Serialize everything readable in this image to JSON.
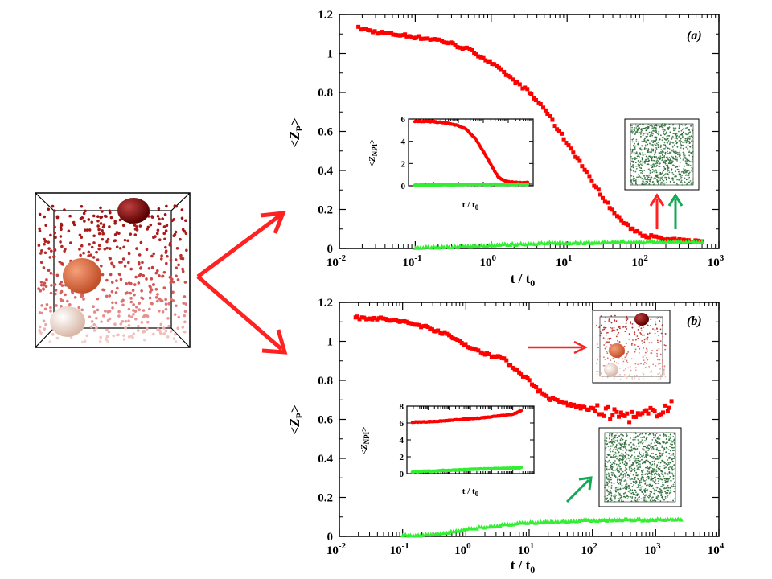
{
  "chart_data": [
    {
      "panel": "(a)",
      "type": "scatter",
      "x_scale": "log",
      "xlim": [
        0.01,
        1000
      ],
      "ylim": [
        0,
        1.2
      ],
      "xlabel": {
        "base": "t / t",
        "sub": "0"
      },
      "ylabel": {
        "base": "<Z",
        "sub": "P",
        "tail": ">"
      },
      "x_ticks": [
        {
          "base": "10",
          "exp": "-2"
        },
        {
          "base": "10",
          "exp": "-1"
        },
        {
          "base": "10",
          "exp": "0"
        },
        {
          "base": "10",
          "exp": "1"
        },
        {
          "base": "10",
          "exp": "2"
        },
        {
          "base": "10",
          "exp": "3"
        }
      ],
      "y_ticks": [
        "0",
        "0.2",
        "0.4",
        "0.6",
        "0.8",
        "1",
        "1.2"
      ],
      "series": [
        {
          "name": "red",
          "color": "#ff0000",
          "marker": "square",
          "x": [
            0.018,
            0.03,
            0.05,
            0.08,
            0.12,
            0.2,
            0.3,
            0.5,
            0.7,
            1.0,
            1.5,
            2.0,
            3.0,
            3.5,
            5,
            7,
            10,
            15,
            20,
            30,
            40,
            60,
            100,
            150,
            200,
            300,
            400,
            600
          ],
          "y": [
            1.13,
            1.11,
            1.1,
            1.09,
            1.08,
            1.07,
            1.05,
            1.02,
            0.99,
            0.95,
            0.9,
            0.86,
            0.81,
            0.78,
            0.72,
            0.63,
            0.54,
            0.44,
            0.36,
            0.26,
            0.19,
            0.12,
            0.07,
            0.055,
            0.045,
            0.04,
            0.038,
            0.036
          ]
        },
        {
          "name": "green",
          "color": "#33ee33",
          "marker": "triangle",
          "x": [
            0.1,
            0.2,
            0.5,
            1,
            2,
            3,
            5,
            10,
            20,
            50,
            100,
            200,
            400,
            600
          ],
          "y": [
            0.005,
            0.008,
            0.012,
            0.018,
            0.022,
            0.025,
            0.027,
            0.029,
            0.031,
            0.033,
            0.034,
            0.035,
            0.036,
            0.036
          ]
        }
      ],
      "inset": {
        "type": "scatter",
        "x_scale": "log",
        "ylim": [
          0,
          6
        ],
        "xlabel": {
          "base": "t / t",
          "sub": "0"
        },
        "ylabel": {
          "base": "<Z",
          "sub": "NPI",
          "tail": ">"
        },
        "y_ticks": [
          "0",
          "2",
          "4",
          "6"
        ],
        "series": [
          {
            "name": "red",
            "color": "#ff0000",
            "x": [
              0.018,
              0.05,
              0.1,
              0.3,
              1,
              2,
              5,
              10,
              20,
              40,
              70,
              100,
              200,
              400,
              600
            ],
            "y": [
              5.8,
              5.78,
              5.75,
              5.65,
              5.4,
              5.1,
              4.2,
              3.1,
              1.9,
              0.8,
              0.45,
              0.35,
              0.3,
              0.28,
              0.28
            ]
          },
          {
            "name": "green",
            "color": "#33ee33",
            "x": [
              0.018,
              0.1,
              1,
              10,
              100,
              600
            ],
            "y": [
              0.05,
              0.08,
              0.1,
              0.12,
              0.13,
              0.14
            ]
          }
        ]
      }
    },
    {
      "panel": "(b)",
      "type": "scatter",
      "x_scale": "log",
      "xlim": [
        0.01,
        10000
      ],
      "ylim": [
        0,
        1.2
      ],
      "xlabel": {
        "base": "t / t",
        "sub": "0"
      },
      "ylabel": {
        "base": "<Z",
        "sub": "P",
        "tail": ">"
      },
      "x_ticks": [
        {
          "base": "10",
          "exp": "-2"
        },
        {
          "base": "10",
          "exp": "-1"
        },
        {
          "base": "10",
          "exp": "0"
        },
        {
          "base": "10",
          "exp": "1"
        },
        {
          "base": "10",
          "exp": "2"
        },
        {
          "base": "10",
          "exp": "3"
        },
        {
          "base": "10",
          "exp": "4"
        }
      ],
      "y_ticks": [
        "0",
        "0.2",
        "0.4",
        "0.6",
        "0.8",
        "1",
        "1.2"
      ],
      "series": [
        {
          "name": "red",
          "color": "#ff0000",
          "marker": "square",
          "x": [
            0.018,
            0.035,
            0.06,
            0.1,
            0.2,
            0.4,
            0.8,
            1.5,
            2.5,
            3.5,
            6,
            10,
            15,
            20,
            30,
            50,
            100,
            200,
            300,
            500,
            800,
            1200,
            1800
          ],
          "y": [
            1.12,
            1.12,
            1.11,
            1.1,
            1.08,
            1.05,
            1.0,
            0.95,
            0.93,
            0.92,
            0.86,
            0.8,
            0.74,
            0.71,
            0.69,
            0.67,
            0.65,
            0.63,
            0.62,
            0.61,
            0.63,
            0.65,
            0.67
          ]
        },
        {
          "name": "green",
          "color": "#33ee33",
          "marker": "triangle",
          "x": [
            0.1,
            0.3,
            0.8,
            1.5,
            3,
            6,
            10,
            20,
            50,
            100,
            300,
            1000,
            2500
          ],
          "y": [
            0.005,
            0.01,
            0.03,
            0.045,
            0.055,
            0.065,
            0.07,
            0.075,
            0.08,
            0.083,
            0.085,
            0.086,
            0.087
          ]
        }
      ],
      "inset": {
        "type": "scatter",
        "x_scale": "log",
        "ylim": [
          0,
          8
        ],
        "xlabel": {
          "base": "t / t",
          "sub": "0"
        },
        "ylabel": {
          "base": "<Z",
          "sub": "NPI",
          "tail": ">"
        },
        "y_ticks": [
          "0",
          "2",
          "4",
          "6",
          "8"
        ],
        "series": [
          {
            "name": "red",
            "color": "#ff0000",
            "x": [
              0.018,
              0.05,
              0.1,
              0.3,
              1,
              3,
              10,
              30,
              100,
              300,
              800,
              1500,
              2500
            ],
            "y": [
              6.1,
              6.12,
              6.15,
              6.2,
              6.3,
              6.4,
              6.5,
              6.6,
              6.75,
              6.9,
              7.0,
              7.2,
              7.5
            ]
          },
          {
            "name": "green",
            "color": "#33ee33",
            "x": [
              0.018,
              0.1,
              1,
              10,
              100,
              1000,
              2500
            ],
            "y": [
              0.2,
              0.3,
              0.4,
              0.5,
              0.6,
              0.65,
              0.7
            ]
          }
        ]
      }
    }
  ],
  "colors": {
    "red_arrow": "#ff2222",
    "green_arrow": "#11aa55",
    "green_cloud": "#2e6b3a",
    "cluster_dark": "#7a0a0a",
    "cluster_mid": "#d9603c",
    "cluster_light": "#f2d6c8"
  }
}
